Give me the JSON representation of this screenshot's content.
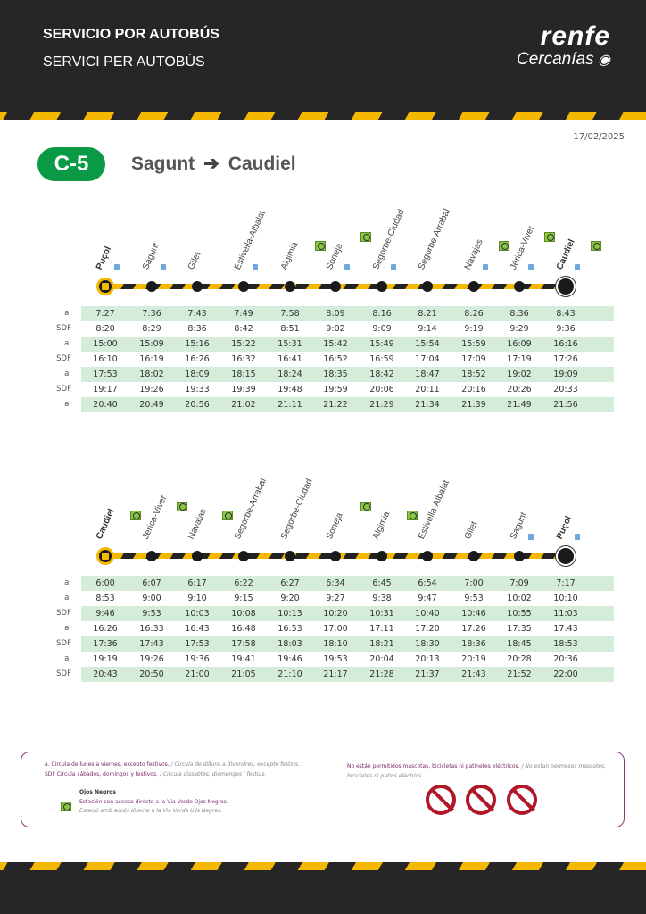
{
  "header": {
    "title": "SERVICIO POR AUTOBÚS",
    "subtitle": "SERVICI PER AUTOBÚS",
    "brand": "renfe",
    "brand_sub": "Cercanías"
  },
  "date": "17/02/2025",
  "line": {
    "code": "C-5",
    "from": "Sagunt",
    "to": "Caudiel",
    "color": "#0a9a46"
  },
  "timetables": [
    {
      "stations": [
        {
          "name": "Puçol",
          "bus": true,
          "ticket": true,
          "vv": false
        },
        {
          "name": "Sagunt",
          "ticket": true
        },
        {
          "name": "Gilet"
        },
        {
          "name": "Estivella-Albalat",
          "ticket": true
        },
        {
          "name": "Algimia",
          "vv": true
        },
        {
          "name": "Soneja",
          "ticket": true,
          "vv": true
        },
        {
          "name": "Segorbe-Ciudad",
          "ticket": true
        },
        {
          "name": "Segorbe-Arrabal"
        },
        {
          "name": "Navajas",
          "ticket": true,
          "vv": true
        },
        {
          "name": "Jérica-Viver",
          "ticket": true,
          "vv": true
        },
        {
          "name": "Caudiel",
          "ticket": true,
          "vv": true
        }
      ],
      "rows": [
        {
          "type": "a.",
          "times": [
            "7:27",
            "7:36",
            "7:43",
            "7:49",
            "7:58",
            "8:09",
            "8:16",
            "8:21",
            "8:26",
            "8:36",
            "8:43"
          ]
        },
        {
          "type": "SDF",
          "times": [
            "8:20",
            "8:29",
            "8:36",
            "8:42",
            "8:51",
            "9:02",
            "9:09",
            "9:14",
            "9:19",
            "9:29",
            "9:36"
          ]
        },
        {
          "type": "a.",
          "times": [
            "15:00",
            "15:09",
            "15:16",
            "15:22",
            "15:31",
            "15:42",
            "15:49",
            "15:54",
            "15:59",
            "16:09",
            "16:16"
          ]
        },
        {
          "type": "SDF",
          "times": [
            "16:10",
            "16:19",
            "16:26",
            "16:32",
            "16:41",
            "16:52",
            "16:59",
            "17:04",
            "17:09",
            "17:19",
            "17:26"
          ]
        },
        {
          "type": "a.",
          "times": [
            "17:53",
            "18:02",
            "18:09",
            "18:15",
            "18:24",
            "18:35",
            "18:42",
            "18:47",
            "18:52",
            "19:02",
            "19:09"
          ]
        },
        {
          "type": "SDF",
          "times": [
            "19:17",
            "19:26",
            "19:33",
            "19:39",
            "19:48",
            "19:59",
            "20:06",
            "20:11",
            "20:16",
            "20:26",
            "20:33"
          ]
        },
        {
          "type": "a.",
          "times": [
            "20:40",
            "20:49",
            "20:56",
            "21:02",
            "21:11",
            "21:22",
            "21:29",
            "21:34",
            "21:39",
            "21:49",
            "21:56"
          ]
        }
      ]
    },
    {
      "stations": [
        {
          "name": "Caudiel",
          "bus": true,
          "vv": true
        },
        {
          "name": "Jérica-Viver",
          "vv": true
        },
        {
          "name": "Navajas",
          "vv": true
        },
        {
          "name": "Segorbe-Arrabal"
        },
        {
          "name": "Segorbe-Ciudad"
        },
        {
          "name": "Soneja",
          "vv": true
        },
        {
          "name": "Algimia",
          "vv": true
        },
        {
          "name": "Estivella-Albalat"
        },
        {
          "name": "Gilet"
        },
        {
          "name": "Sagunt",
          "ticket": true
        },
        {
          "name": "Puçol",
          "ticket": true
        }
      ],
      "rows": [
        {
          "type": "a.",
          "times": [
            "6:00",
            "6:07",
            "6:17",
            "6:22",
            "6:27",
            "6:34",
            "6:45",
            "6:54",
            "7:00",
            "7:09",
            "7:17"
          ]
        },
        {
          "type": "a.",
          "times": [
            "8:53",
            "9:00",
            "9:10",
            "9:15",
            "9:20",
            "9:27",
            "9:38",
            "9:47",
            "9:53",
            "10:02",
            "10:10"
          ]
        },
        {
          "type": "SDF",
          "times": [
            "9:46",
            "9:53",
            "10:03",
            "10:08",
            "10:13",
            "10:20",
            "10:31",
            "10:40",
            "10:46",
            "10:55",
            "11:03"
          ]
        },
        {
          "type": "a.",
          "times": [
            "16:26",
            "16:33",
            "16:43",
            "16:48",
            "16:53",
            "17:00",
            "17:11",
            "17:20",
            "17:26",
            "17:35",
            "17:43"
          ]
        },
        {
          "type": "SDF",
          "times": [
            "17:36",
            "17:43",
            "17:53",
            "17:58",
            "18:03",
            "18:10",
            "18:21",
            "18:30",
            "18:36",
            "18:45",
            "18:53"
          ]
        },
        {
          "type": "a.",
          "times": [
            "19:19",
            "19:26",
            "19:36",
            "19:41",
            "19:46",
            "19:53",
            "20:04",
            "20:13",
            "20:19",
            "20:28",
            "20:36"
          ]
        },
        {
          "type": "SDF",
          "times": [
            "20:43",
            "20:50",
            "21:00",
            "21:05",
            "21:10",
            "21:17",
            "21:28",
            "21:37",
            "21:43",
            "21:52",
            "22:00"
          ]
        }
      ]
    }
  ],
  "legend": {
    "a": "a.  Circula de lunes a viernes, excepto festivos.",
    "a_ca": "/ Circula de dilluns a divendres, excepte festius.",
    "sdf": "SDF Circula sábados, domingos y festivos.",
    "sdf_ca": "/ Circula dissabtes, diumenges i festius.",
    "vv_title": "Ojos Negros",
    "vv_es": "Estación con acceso directo a la Vía Verde Ojos Negros.",
    "vv_ca": "Estació amb accés directe a la Via Verda Ulls Negres.",
    "pets": "No están permitidos mascotas, bicicletas ni patinetes eléctricos.",
    "pets_ca": "/ No estan permesos mascotes, bicicletes ni patins elèctrics.",
    "prohibited_icons": [
      "no-pets-icon",
      "no-bicycles-icon",
      "no-scooters-icon"
    ]
  }
}
